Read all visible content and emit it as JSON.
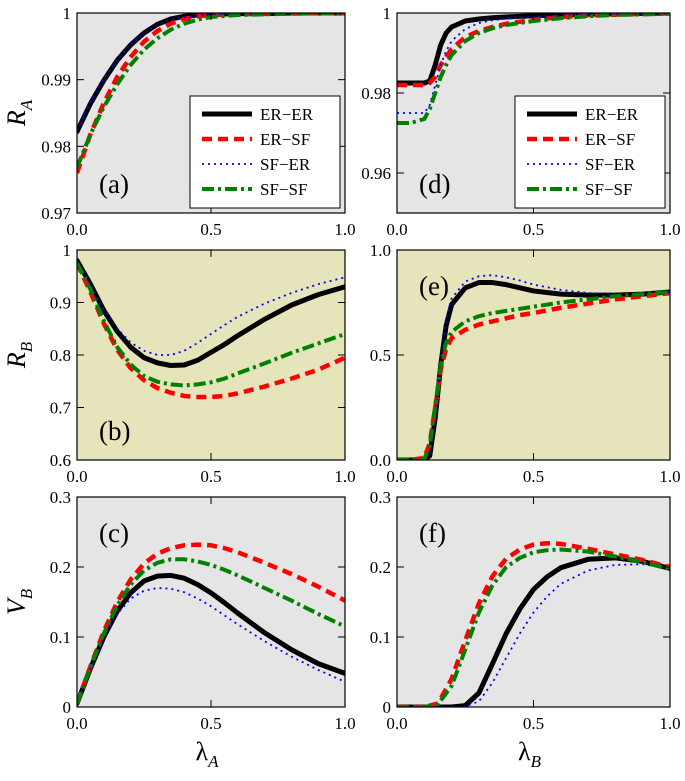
{
  "styles": {
    "ER-ER": {
      "color": "#000000",
      "dash": "none",
      "width": 5
    },
    "ER-SF": {
      "color": "#ff0000",
      "dash": "10 6",
      "width": 4.5
    },
    "SF-ER": {
      "color": "#0000ff",
      "dash": "2 4",
      "width": 1.8
    },
    "SF-SF": {
      "color": "#008000",
      "dash": "12 4 3 4",
      "width": 4
    },
    "bg_gray": "#e5e5e5",
    "bg_tan": "#e6e4bb"
  },
  "chart_data": [
    {
      "id": "a",
      "type": "line",
      "panel_label": "(a)",
      "label_pos": "bottom-left",
      "ylabel": "R",
      "ylabel_sub": "A",
      "xlabel": "",
      "xlim": [
        0,
        1
      ],
      "ylim": [
        0.97,
        1
      ],
      "xticks": [
        0,
        0.5,
        1
      ],
      "xticklabels": [
        "0.0",
        "0.5",
        "1.0"
      ],
      "yticks": [
        0.97,
        0.98,
        0.99,
        1
      ],
      "yticklabels": [
        "0.97",
        "0.98",
        "0.99",
        "1"
      ],
      "bg": "gray",
      "legend": [
        "ER−ER",
        "ER−SF",
        "SF−ER",
        "SF−SF"
      ],
      "legend_loc": "bottom-right",
      "x": [
        0,
        0.05,
        0.1,
        0.15,
        0.2,
        0.25,
        0.3,
        0.35,
        0.4,
        0.45,
        0.5,
        0.6,
        0.7,
        0.8,
        0.9,
        1.0
      ],
      "series": [
        {
          "name": "ER-ER",
          "values": [
            0.9822,
            0.9864,
            0.9899,
            0.9929,
            0.9952,
            0.997,
            0.9983,
            0.9991,
            0.9995,
            0.9997,
            0.9998,
            0.9999,
            0.9999,
            1.0,
            1.0,
            1.0
          ]
        },
        {
          "name": "ER-SF",
          "values": [
            0.976,
            0.9818,
            0.9865,
            0.9904,
            0.9934,
            0.9957,
            0.9973,
            0.9984,
            0.9991,
            0.9995,
            0.9997,
            0.9998,
            0.9999,
            0.9999,
            1.0,
            1.0
          ]
        },
        {
          "name": "SF-ER",
          "values": [
            0.9825,
            0.9867,
            0.9902,
            0.993,
            0.9953,
            0.997,
            0.9982,
            0.999,
            0.9994,
            0.9996,
            0.9998,
            0.9999,
            0.9999,
            1.0,
            1.0,
            1.0
          ]
        },
        {
          "name": "SF-SF",
          "values": [
            0.9768,
            0.9818,
            0.9859,
            0.9893,
            0.9922,
            0.9945,
            0.9962,
            0.9975,
            0.9984,
            0.999,
            0.9994,
            0.9997,
            0.9998,
            0.9999,
            0.9999,
            1.0
          ]
        }
      ]
    },
    {
      "id": "b",
      "type": "line",
      "panel_label": "(b)",
      "label_pos": "bottom-left",
      "ylabel": "R",
      "ylabel_sub": "B",
      "xlabel": "",
      "xlim": [
        0,
        1
      ],
      "ylim": [
        0.6,
        1
      ],
      "xticks": [
        0,
        0.5,
        1
      ],
      "xticklabels": [
        "0.0",
        "0.5",
        "1.0"
      ],
      "yticks": [
        0.6,
        0.7,
        0.8,
        0.9,
        1
      ],
      "yticklabels": [
        "0.6",
        "0.7",
        "0.8",
        "0.9",
        "1"
      ],
      "bg": "tan",
      "x": [
        0,
        0.05,
        0.1,
        0.15,
        0.2,
        0.25,
        0.3,
        0.35,
        0.4,
        0.45,
        0.5,
        0.55,
        0.6,
        0.7,
        0.8,
        0.9,
        1.0
      ],
      "series": [
        {
          "name": "ER-ER",
          "values": [
            0.98,
            0.935,
            0.885,
            0.845,
            0.815,
            0.795,
            0.785,
            0.78,
            0.781,
            0.79,
            0.805,
            0.82,
            0.837,
            0.868,
            0.895,
            0.915,
            0.93
          ]
        },
        {
          "name": "ER-SF",
          "values": [
            0.975,
            0.92,
            0.86,
            0.81,
            0.775,
            0.752,
            0.737,
            0.728,
            0.722,
            0.72,
            0.72,
            0.722,
            0.727,
            0.74,
            0.755,
            0.772,
            0.795
          ]
        },
        {
          "name": "SF-ER",
          "values": [
            0.98,
            0.935,
            0.885,
            0.85,
            0.824,
            0.808,
            0.8,
            0.8,
            0.808,
            0.823,
            0.84,
            0.857,
            0.873,
            0.898,
            0.918,
            0.935,
            0.948
          ]
        },
        {
          "name": "SF-SF",
          "values": [
            0.975,
            0.925,
            0.865,
            0.815,
            0.782,
            0.76,
            0.749,
            0.744,
            0.742,
            0.744,
            0.748,
            0.755,
            0.765,
            0.784,
            0.804,
            0.822,
            0.84
          ]
        }
      ]
    },
    {
      "id": "c",
      "type": "line",
      "panel_label": "(c)",
      "label_pos": "top-left",
      "ylabel": "V",
      "ylabel_sub": "B",
      "xlabel": "λ",
      "xlabel_sub": "A",
      "xlim": [
        0,
        1
      ],
      "ylim": [
        0,
        0.3
      ],
      "xticks": [
        0,
        0.5,
        1
      ],
      "xticklabels": [
        "0.0",
        "0.5",
        "1.0"
      ],
      "yticks": [
        0,
        0.1,
        0.2,
        0.3
      ],
      "yticklabels": [
        "0",
        "0.1",
        "0.2",
        "0.3"
      ],
      "bg": "gray",
      "x": [
        0,
        0.05,
        0.1,
        0.15,
        0.2,
        0.25,
        0.3,
        0.35,
        0.4,
        0.45,
        0.5,
        0.55,
        0.6,
        0.7,
        0.8,
        0.9,
        1.0
      ],
      "series": [
        {
          "name": "ER-ER",
          "values": [
            0.005,
            0.055,
            0.1,
            0.137,
            0.163,
            0.18,
            0.187,
            0.188,
            0.184,
            0.175,
            0.163,
            0.149,
            0.134,
            0.106,
            0.082,
            0.062,
            0.048
          ]
        },
        {
          "name": "ER-SF",
          "values": [
            0.005,
            0.058,
            0.108,
            0.15,
            0.182,
            0.205,
            0.219,
            0.227,
            0.231,
            0.232,
            0.231,
            0.227,
            0.221,
            0.206,
            0.19,
            0.172,
            0.152
          ]
        },
        {
          "name": "SF-ER",
          "values": [
            0.005,
            0.055,
            0.1,
            0.133,
            0.155,
            0.166,
            0.17,
            0.169,
            0.164,
            0.155,
            0.144,
            0.131,
            0.118,
            0.094,
            0.072,
            0.053,
            0.036
          ]
        },
        {
          "name": "SF-SF",
          "values": [
            0.005,
            0.057,
            0.105,
            0.145,
            0.175,
            0.195,
            0.206,
            0.211,
            0.211,
            0.208,
            0.203,
            0.196,
            0.188,
            0.17,
            0.152,
            0.133,
            0.115
          ]
        }
      ]
    },
    {
      "id": "d",
      "type": "line",
      "panel_label": "(d)",
      "label_pos": "bottom-left",
      "ylabel": "",
      "xlabel": "",
      "xlim": [
        0,
        1
      ],
      "ylim": [
        0.95,
        1
      ],
      "xticks": [
        0,
        0.5,
        1
      ],
      "xticklabels": [
        "0.0",
        "0.5",
        "1.0"
      ],
      "yticks": [
        0.96,
        0.98,
        1
      ],
      "yticklabels": [
        "0.96",
        "0.98",
        "1"
      ],
      "bg": "gray",
      "legend": [
        "ER−ER",
        "ER−SF",
        "SF−ER",
        "SF−SF"
      ],
      "legend_loc": "bottom-right",
      "x": [
        0,
        0.05,
        0.1,
        0.12,
        0.14,
        0.16,
        0.18,
        0.2,
        0.25,
        0.3,
        0.35,
        0.4,
        0.5,
        0.6,
        0.7,
        0.8,
        1.0
      ],
      "series": [
        {
          "name": "ER-ER",
          "values": [
            0.9825,
            0.9825,
            0.9825,
            0.983,
            0.987,
            0.992,
            0.995,
            0.9965,
            0.998,
            0.9985,
            0.9988,
            0.999,
            0.9993,
            0.9995,
            0.9997,
            0.9998,
            1.0
          ]
        },
        {
          "name": "ER-SF",
          "values": [
            0.982,
            0.982,
            0.982,
            0.9825,
            0.984,
            0.987,
            0.989,
            0.991,
            0.994,
            0.9955,
            0.9965,
            0.9973,
            0.9983,
            0.999,
            0.9994,
            0.9996,
            0.9999
          ]
        },
        {
          "name": "SF-ER",
          "values": [
            0.975,
            0.975,
            0.975,
            0.977,
            0.982,
            0.987,
            0.9905,
            0.993,
            0.996,
            0.9975,
            0.9982,
            0.9986,
            0.9991,
            0.9994,
            0.9996,
            0.9997,
            0.9999
          ]
        },
        {
          "name": "SF-SF",
          "values": [
            0.9725,
            0.9725,
            0.9735,
            0.976,
            0.98,
            0.984,
            0.987,
            0.9895,
            0.993,
            0.995,
            0.9962,
            0.997,
            0.998,
            0.9987,
            0.9992,
            0.9995,
            0.9998
          ]
        }
      ]
    },
    {
      "id": "e",
      "type": "line",
      "panel_label": "(e)",
      "label_pos": "top-left",
      "ylabel": "",
      "xlabel": "",
      "xlim": [
        0,
        1
      ],
      "ylim": [
        0,
        1
      ],
      "xticks": [
        0,
        0.5,
        1
      ],
      "xticklabels": [
        "0.0",
        "0.5",
        "1.0"
      ],
      "yticks": [
        0,
        0.5,
        1
      ],
      "yticklabels": [
        "0.0",
        "0.5",
        "1.0"
      ],
      "bg": "tan",
      "x": [
        0,
        0.05,
        0.1,
        0.12,
        0.14,
        0.16,
        0.18,
        0.2,
        0.25,
        0.3,
        0.35,
        0.4,
        0.45,
        0.5,
        0.6,
        0.7,
        0.8,
        0.9,
        1.0
      ],
      "series": [
        {
          "name": "ER-ER",
          "values": [
            0,
            0,
            0,
            0.02,
            0.2,
            0.45,
            0.64,
            0.74,
            0.82,
            0.845,
            0.845,
            0.835,
            0.82,
            0.805,
            0.79,
            0.785,
            0.785,
            0.79,
            0.8
          ]
        },
        {
          "name": "ER-SF",
          "values": [
            0,
            0,
            0.01,
            0.08,
            0.25,
            0.43,
            0.53,
            0.58,
            0.62,
            0.645,
            0.66,
            0.675,
            0.69,
            0.7,
            0.725,
            0.745,
            0.765,
            0.78,
            0.795
          ]
        },
        {
          "name": "SF-ER",
          "values": [
            0,
            0,
            0,
            0.02,
            0.2,
            0.47,
            0.67,
            0.77,
            0.85,
            0.875,
            0.88,
            0.87,
            0.855,
            0.835,
            0.81,
            0.795,
            0.79,
            0.79,
            0.8
          ]
        },
        {
          "name": "SF-SF",
          "values": [
            0,
            0,
            0.005,
            0.07,
            0.26,
            0.45,
            0.56,
            0.61,
            0.66,
            0.685,
            0.7,
            0.71,
            0.72,
            0.73,
            0.75,
            0.765,
            0.78,
            0.79,
            0.8
          ]
        }
      ]
    },
    {
      "id": "f",
      "type": "line",
      "panel_label": "(f)",
      "label_pos": "top-left",
      "ylabel": "",
      "xlabel": "λ",
      "xlabel_sub": "B",
      "xlim": [
        0,
        1
      ],
      "ylim": [
        0,
        0.3
      ],
      "xticks": [
        0,
        0.5,
        1
      ],
      "xticklabels": [
        "0.0",
        "0.5",
        "1.0"
      ],
      "yticks": [
        0,
        0.1,
        0.2,
        0.3
      ],
      "yticklabels": [
        "0",
        "0.1",
        "0.2",
        "0.3"
      ],
      "bg": "gray",
      "x": [
        0,
        0.1,
        0.15,
        0.2,
        0.25,
        0.3,
        0.35,
        0.4,
        0.45,
        0.5,
        0.55,
        0.6,
        0.7,
        0.8,
        0.9,
        1.0
      ],
      "series": [
        {
          "name": "ER-ER",
          "values": [
            0,
            0,
            0,
            0,
            0.002,
            0.02,
            0.062,
            0.105,
            0.14,
            0.168,
            0.186,
            0.199,
            0.211,
            0.213,
            0.208,
            0.198
          ]
        },
        {
          "name": "ER-SF",
          "values": [
            0,
            0,
            0.005,
            0.04,
            0.095,
            0.148,
            0.187,
            0.212,
            0.225,
            0.232,
            0.234,
            0.233,
            0.226,
            0.218,
            0.21,
            0.2
          ]
        },
        {
          "name": "SF-ER",
          "values": [
            0,
            0,
            0,
            0,
            0.001,
            0.008,
            0.035,
            0.07,
            0.105,
            0.135,
            0.158,
            0.176,
            0.195,
            0.203,
            0.204,
            0.198
          ]
        },
        {
          "name": "SF-SF",
          "values": [
            0,
            0,
            0.004,
            0.03,
            0.082,
            0.135,
            0.174,
            0.2,
            0.213,
            0.221,
            0.224,
            0.225,
            0.222,
            0.215,
            0.207,
            0.197
          ]
        }
      ]
    }
  ]
}
